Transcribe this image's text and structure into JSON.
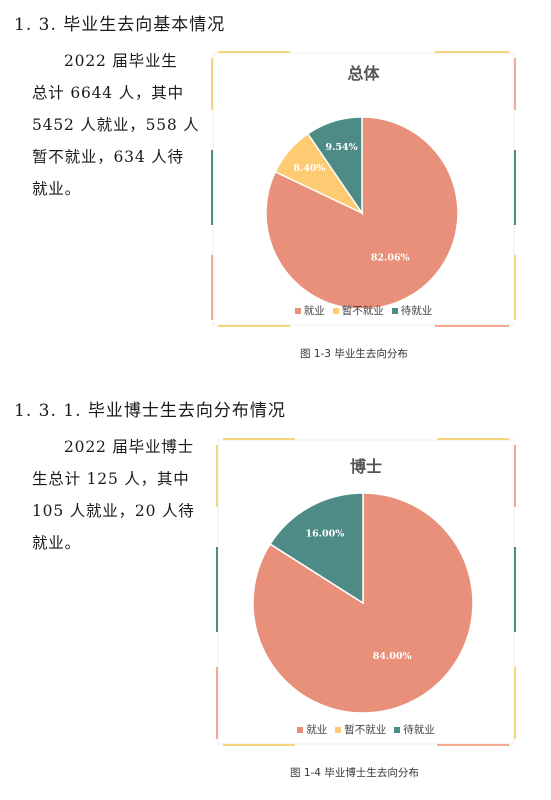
{
  "section1": {
    "heading": "1. 3.  毕业生去向基本情况",
    "lines": [
      "2022 届毕业生",
      "总计 6644 人，其中",
      "5452 人就业，558 人",
      "暂不就业，634 人待",
      "就业。"
    ]
  },
  "section2": {
    "heading": "1. 3. 1.   毕业博士生去向分布情况",
    "lines": [
      "2022 届毕业博士",
      "生总计 125 人，其中",
      "105 人就业，20 人待",
      "就业。"
    ]
  },
  "colors": {
    "employed": "#E8907A",
    "not_employed": "#FECB73",
    "waiting": "#4E8B87",
    "frame_orange": "#F3A98F",
    "frame_yellow": "#F7D57F",
    "frame_teal": "#4E8B87"
  },
  "legend": {
    "employed": "就业",
    "not_employed": "暂不就业",
    "waiting": "待就业"
  },
  "chart_data": [
    {
      "type": "pie",
      "title": "总体",
      "categories": [
        "就业",
        "暂不就业",
        "待就业"
      ],
      "values": [
        82.06,
        8.4,
        9.54
      ],
      "labels": [
        "82.06%",
        "8.40%",
        "9.54%"
      ],
      "legend_position": "bottom",
      "caption": "图 1-3  毕业生去向分布"
    },
    {
      "type": "pie",
      "title": "博士",
      "categories": [
        "就业",
        "暂不就业",
        "待就业"
      ],
      "values": [
        84.0,
        0,
        16.0
      ],
      "labels": [
        "84.00%",
        "",
        "16.00%"
      ],
      "legend_position": "bottom",
      "caption": "图 1-4  毕业博士生去向分布"
    }
  ]
}
